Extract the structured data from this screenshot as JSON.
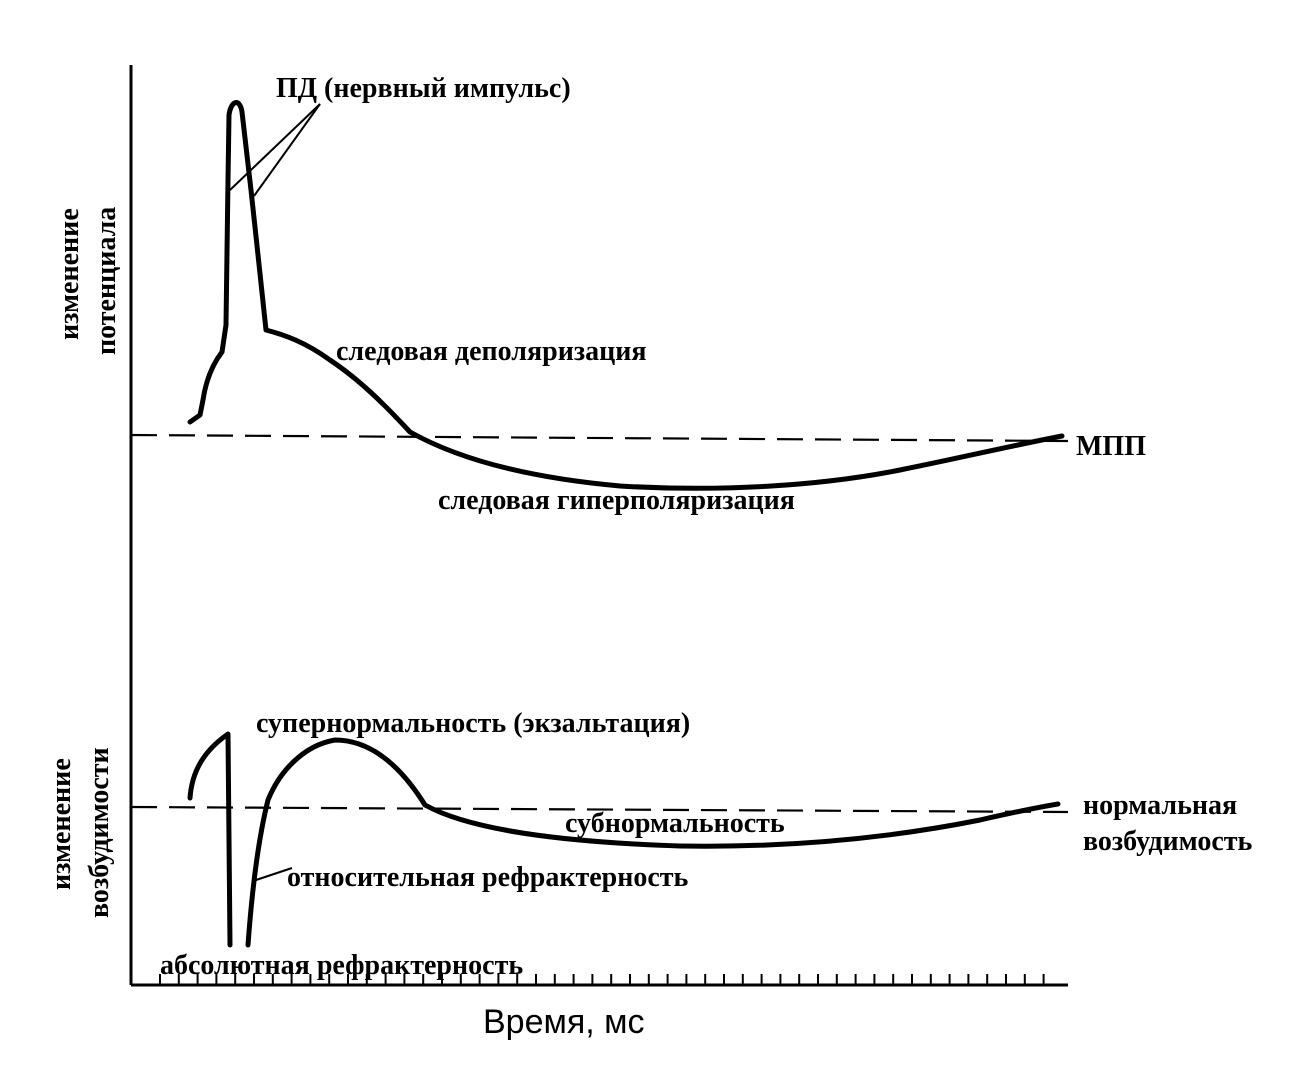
{
  "labels": {
    "pd": "ПД (нервный импульс)",
    "trace_depolarization": "следовая деполяризация",
    "mpp": "МПП",
    "trace_hyperpolarization": "следовая гиперполяризация",
    "y_top_line1": "изменение",
    "y_top_line2": "потенциала",
    "supernormality": "супернормальность (экзальтация)",
    "subnormality": "субнормальность",
    "normal_excitability_line1": "нормальная",
    "normal_excitability_line2": "возбудимость",
    "relative_refractory": "относительная  рефрактерность",
    "absolute_refractory": "абсолютная рефрактерность",
    "y_bottom_line1": "изменение",
    "y_bottom_line2": "возбудимости",
    "x_axis": "Время, мс"
  }
}
